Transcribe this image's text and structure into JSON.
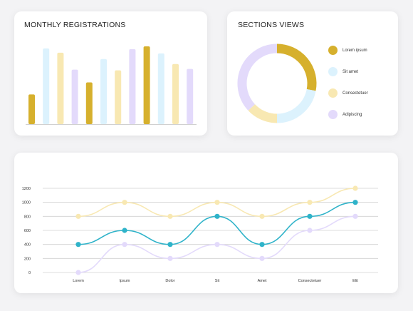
{
  "colors": {
    "gold": "#d6b02d",
    "light_blue": "#dcf2fd",
    "light_yellow": "#f8e8b2",
    "lavender": "#e3dafb",
    "teal": "#2fb3c9",
    "axis_gray": "#d0d0d0",
    "text": "#222222"
  },
  "bar_card": {
    "title": "MONTHLY REGISTRATIONS"
  },
  "donut_card": {
    "title": "SECTIONS VIEWS"
  },
  "chart_data": [
    {
      "type": "bar",
      "title": "MONTHLY REGISTRATIONS",
      "xlabel": "",
      "ylabel": "",
      "categories": [
        "",
        "",
        "",
        "",
        "",
        "",
        "",
        "",
        "",
        "",
        "",
        ""
      ],
      "values": [
        42,
        107,
        101,
        77,
        59,
        92,
        76,
        106,
        110,
        100,
        85,
        78
      ],
      "bar_colors": [
        "#d6b02d",
        "#dcf2fd",
        "#f8e8b2",
        "#e3dafb",
        "#d6b02d",
        "#dcf2fd",
        "#f8e8b2",
        "#e3dafb",
        "#d6b02d",
        "#dcf2fd",
        "#f8e8b2",
        "#e3dafb"
      ],
      "ylim": [
        0,
        115
      ],
      "grid": false,
      "legend": "none"
    },
    {
      "type": "pie",
      "title": "SECTIONS VIEWS",
      "donut": true,
      "slices": [
        {
          "label": "Lorem ipsum",
          "value": 28,
          "color": "#d6b02d"
        },
        {
          "label": "Sit amet",
          "value": 22,
          "color": "#dcf2fd"
        },
        {
          "label": "Consectetuer",
          "value": 13,
          "color": "#f8e8b2"
        },
        {
          "label": "Adipiscing",
          "value": 37,
          "color": "#e3dafb"
        }
      ],
      "legend": "right"
    },
    {
      "type": "line",
      "title": "",
      "xlabel": "",
      "ylabel": "",
      "x": [
        "Lorem",
        "Ipsum",
        "Dolor",
        "Sit",
        "Amet",
        "Consectetuer",
        "Elit"
      ],
      "y_ticks": [
        0,
        200,
        400,
        600,
        800,
        1000,
        1200
      ],
      "ylim": [
        0,
        1200
      ],
      "grid": true,
      "legend": "none",
      "series": [
        {
          "values": [
            800,
            1000,
            800,
            1000,
            800,
            1000,
            1200
          ],
          "color": "#f8e8b2"
        },
        {
          "values": [
            400,
            600,
            400,
            800,
            400,
            800,
            1000
          ],
          "color": "#2fb3c9"
        },
        {
          "values": [
            0,
            400,
            200,
            400,
            200,
            600,
            800
          ],
          "color": "#e3dafb"
        }
      ]
    }
  ]
}
